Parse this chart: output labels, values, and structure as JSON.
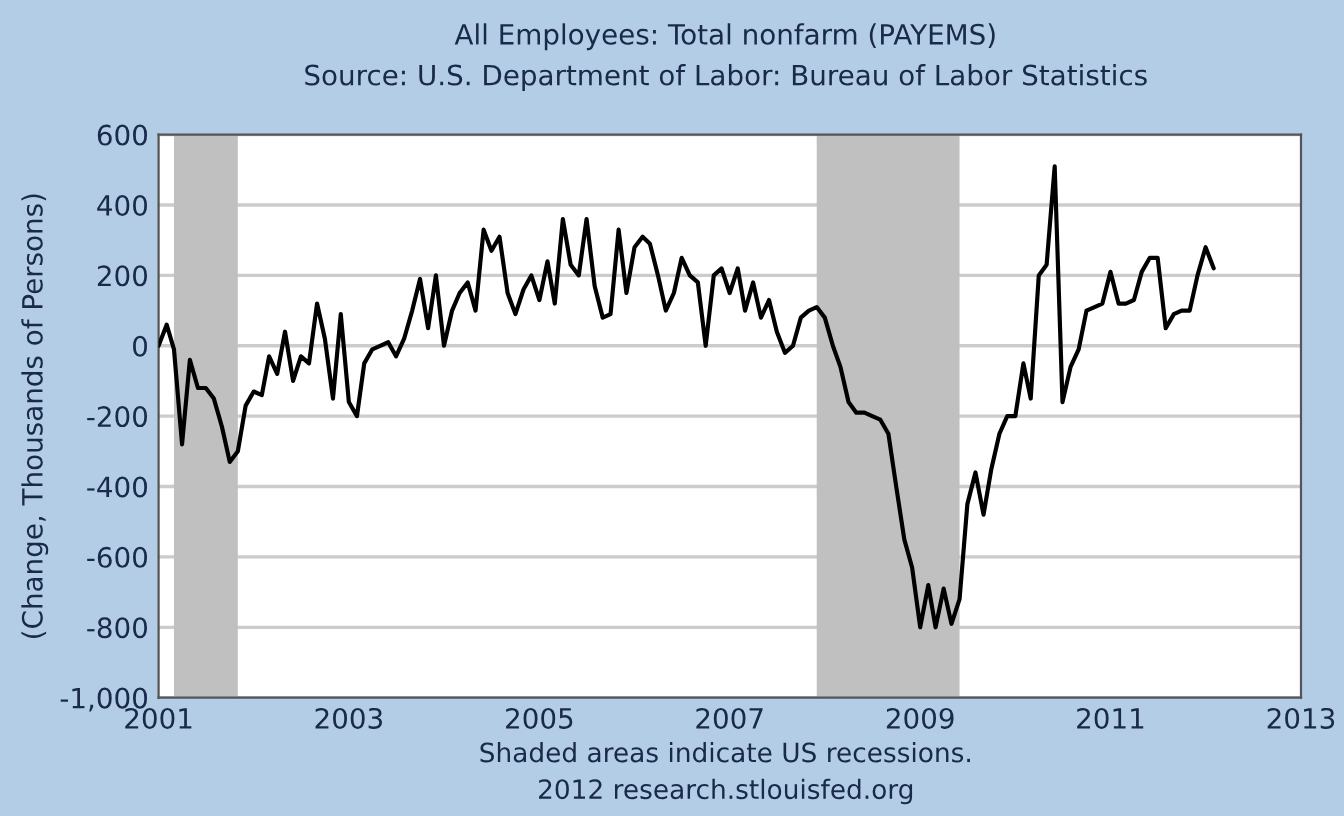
{
  "chart_data": {
    "type": "line",
    "title": "All Employees: Total nonfarm (PAYEMS)",
    "subtitle": "Source: U.S. Department of Labor: Bureau of Labor Statistics",
    "ylabel": "(Change, Thousands of Persons)",
    "annotations": [
      "Shaded areas indicate US recessions.",
      "2012 research.stlouisfed.org"
    ],
    "x": [
      "2001-01",
      "2001-02",
      "2001-03",
      "2001-04",
      "2001-05",
      "2001-06",
      "2001-07",
      "2001-08",
      "2001-09",
      "2001-10",
      "2001-11",
      "2001-12",
      "2002-01",
      "2002-02",
      "2002-03",
      "2002-04",
      "2002-05",
      "2002-06",
      "2002-07",
      "2002-08",
      "2002-09",
      "2002-10",
      "2002-11",
      "2002-12",
      "2003-01",
      "2003-02",
      "2003-03",
      "2003-04",
      "2003-05",
      "2003-06",
      "2003-07",
      "2003-08",
      "2003-09",
      "2003-10",
      "2003-11",
      "2003-12",
      "2004-01",
      "2004-02",
      "2004-03",
      "2004-04",
      "2004-05",
      "2004-06",
      "2004-07",
      "2004-08",
      "2004-09",
      "2004-10",
      "2004-11",
      "2004-12",
      "2005-01",
      "2005-02",
      "2005-03",
      "2005-04",
      "2005-05",
      "2005-06",
      "2005-07",
      "2005-08",
      "2005-09",
      "2005-10",
      "2005-11",
      "2005-12",
      "2006-01",
      "2006-02",
      "2006-03",
      "2006-04",
      "2006-05",
      "2006-06",
      "2006-07",
      "2006-08",
      "2006-09",
      "2006-10",
      "2006-11",
      "2006-12",
      "2007-01",
      "2007-02",
      "2007-03",
      "2007-04",
      "2007-05",
      "2007-06",
      "2007-07",
      "2007-08",
      "2007-09",
      "2007-10",
      "2007-11",
      "2007-12",
      "2008-01",
      "2008-02",
      "2008-03",
      "2008-04",
      "2008-05",
      "2008-06",
      "2008-07",
      "2008-08",
      "2008-09",
      "2008-10",
      "2008-11",
      "2008-12",
      "2009-01",
      "2009-02",
      "2009-03",
      "2009-04",
      "2009-05",
      "2009-06",
      "2009-07",
      "2009-08",
      "2009-09",
      "2009-10",
      "2009-11",
      "2009-12",
      "2010-01",
      "2010-02",
      "2010-03",
      "2010-04",
      "2010-05",
      "2010-06",
      "2010-07",
      "2010-08",
      "2010-09",
      "2010-10",
      "2010-11",
      "2010-12",
      "2011-01",
      "2011-02",
      "2011-03",
      "2011-04",
      "2011-05",
      "2011-06",
      "2011-07",
      "2011-08",
      "2011-09",
      "2011-10",
      "2011-11",
      "2011-12",
      "2012-01",
      "2012-02"
    ],
    "series": [
      {
        "color": "#000000",
        "values": [
          0,
          60,
          -10,
          -280,
          -40,
          -120,
          -120,
          -150,
          -230,
          -330,
          -300,
          -170,
          -130,
          -140,
          -30,
          -80,
          40,
          -100,
          -30,
          -50,
          120,
          20,
          -150,
          90,
          -160,
          -200,
          -50,
          -10,
          0,
          10,
          -30,
          20,
          100,
          190,
          50,
          200,
          0,
          100,
          150,
          180,
          100,
          330,
          270,
          310,
          150,
          90,
          160,
          200,
          130,
          240,
          120,
          360,
          230,
          200,
          360,
          170,
          80,
          90,
          330,
          150,
          280,
          310,
          290,
          200,
          100,
          150,
          250,
          200,
          180,
          0,
          200,
          220,
          150,
          220,
          100,
          180,
          80,
          130,
          40,
          -20,
          0,
          80,
          100,
          110,
          80,
          0,
          -60,
          -160,
          -190,
          -190,
          -200,
          -210,
          -250,
          -400,
          -550,
          -630,
          -800,
          -680,
          -800,
          -690,
          -790,
          -720,
          -450,
          -360,
          -480,
          -350,
          -250,
          -200,
          -200,
          -50,
          -150,
          200,
          230,
          510,
          -160,
          -60,
          -10,
          100,
          110,
          120,
          210,
          120,
          120,
          130,
          210,
          250,
          250,
          50,
          90,
          100,
          100,
          200,
          280,
          220
        ]
      }
    ],
    "xlim": [
      "2001",
      "2013"
    ],
    "xticks": [
      "2001",
      "2003",
      "2005",
      "2007",
      "2009",
      "2011",
      "2013"
    ],
    "ylim": [
      -1000,
      600
    ],
    "yticks": [
      {
        "value": -1000,
        "label": "-1,000"
      },
      -800,
      -600,
      -400,
      -200,
      0,
      200,
      400,
      600
    ],
    "bands": [
      {
        "axis": "x",
        "from": "2001-03",
        "to": "2001-11",
        "color": "#c0c0c0"
      },
      {
        "axis": "x",
        "from": "2007-12",
        "to": "2009-06",
        "color": "#c0c0c0"
      }
    ],
    "grid": "y",
    "legend": false,
    "marker": "none",
    "line_style": "solid"
  }
}
